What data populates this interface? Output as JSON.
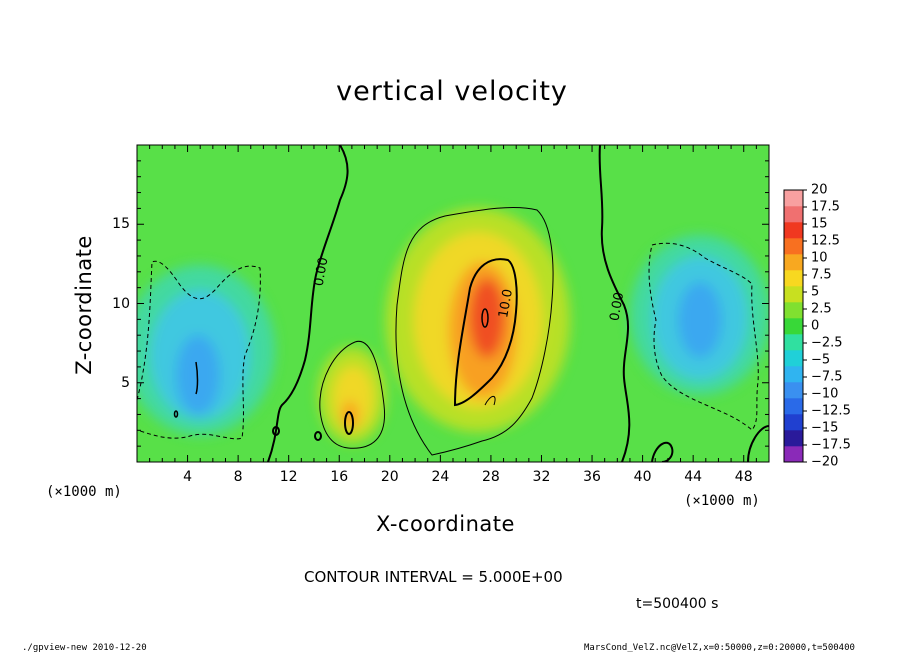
{
  "colors": {
    "background": "#ffffff",
    "text": "#000000",
    "contour": "#000000"
  },
  "footer": {
    "left": "./gpview-new   2010-12-20",
    "right": "MarsCond_VelZ.nc@VelZ,x=0:50000,z=0:20000,t=500400"
  },
  "chart_data": {
    "type": "heatmap",
    "title": "vertical velocity",
    "xlabel": "X-coordinate",
    "ylabel": "Z-coordinate",
    "x_unit": "(×1000 m)",
    "y_unit": "(×1000 m)",
    "xlim": [
      0,
      50
    ],
    "ylim": [
      0,
      20
    ],
    "x_ticks": [
      4,
      8,
      12,
      16,
      20,
      24,
      28,
      32,
      36,
      40,
      44,
      48
    ],
    "y_ticks": [
      5,
      10,
      15
    ],
    "contour_interval_text": "CONTOUR INTERVAL = 5.000E+00",
    "time_text": "t=500400 s",
    "contour_labels": [
      {
        "text": "0.00",
        "x": 14.6,
        "y": 12.0,
        "rotation": -80
      },
      {
        "text": "10.0",
        "x": 29.2,
        "y": 10.0,
        "rotation": -80
      },
      {
        "text": "0.00",
        "x": 38.0,
        "y": 9.8,
        "rotation": -80
      }
    ],
    "colorbar": {
      "levels": [
        -20,
        -17.5,
        -15,
        -12.5,
        -10,
        -7.5,
        -5,
        -2.5,
        0,
        2.5,
        5,
        7.5,
        10,
        12.5,
        15,
        17.5,
        20
      ],
      "labels": [
        "20",
        "17.5",
        "15",
        "12.5",
        "10",
        "7.5",
        "5",
        "2.5",
        "0",
        "−2.5",
        "−5",
        "−7.5",
        "−10",
        "−12.5",
        "−15",
        "−17.5",
        "−20"
      ],
      "colors": [
        "#8a2ab8",
        "#2a1a9a",
        "#2040d0",
        "#2a6ae8",
        "#3a90f0",
        "#30b4f0",
        "#20d0d8",
        "#30e0a0",
        "#38d838",
        "#80e030",
        "#c8e020",
        "#f8d820",
        "#f8a820",
        "#f87020",
        "#f03820",
        "#f07070",
        "#f8a0a0"
      ]
    },
    "features": [
      {
        "name": "updraft",
        "x": 28,
        "z": 8.8,
        "peak": 15.5
      },
      {
        "name": "updraft",
        "x": 17.6,
        "z": 4.2,
        "peak": 9
      },
      {
        "name": "downdraft",
        "x": 5.5,
        "z": 6.0,
        "peak": -9
      },
      {
        "name": "downdraft",
        "x": 44.5,
        "z": 8.5,
        "peak": -8
      }
    ]
  }
}
